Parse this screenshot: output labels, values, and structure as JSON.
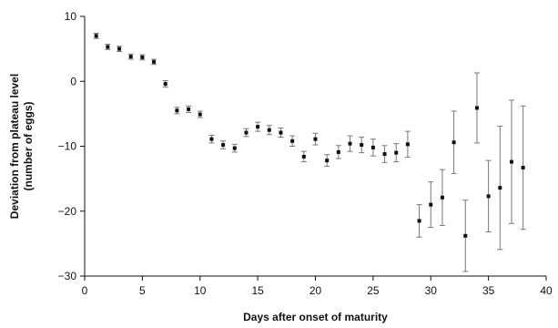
{
  "chart_data": {
    "type": "scatter",
    "title": "",
    "xlabel": "Days after onset of maturity",
    "ylabel_line1": "Deviation from plateau level",
    "ylabel_line2": "(number of eggs)",
    "xlim": [
      0,
      40
    ],
    "ylim": [
      -30,
      10
    ],
    "x_ticks": [
      0,
      5,
      10,
      15,
      20,
      25,
      30,
      35,
      40
    ],
    "y_ticks": [
      10,
      0,
      -10,
      -20,
      -30
    ],
    "x_tick_labels": [
      "0",
      "5",
      "10",
      "15",
      "20",
      "25",
      "30",
      "35",
      "40"
    ],
    "y_tick_labels": [
      "10",
      "0",
      "−10",
      "−20",
      "−30"
    ],
    "grid": false,
    "legend": "none",
    "marker_color": "#111111",
    "errorbar_color": "#777777",
    "points": [
      {
        "x": 1,
        "y": 7.0,
        "err": 0.4
      },
      {
        "x": 2,
        "y": 5.3,
        "err": 0.4
      },
      {
        "x": 3,
        "y": 5.0,
        "err": 0.4
      },
      {
        "x": 4,
        "y": 3.8,
        "err": 0.4
      },
      {
        "x": 5,
        "y": 3.7,
        "err": 0.4
      },
      {
        "x": 6,
        "y": 3.0,
        "err": 0.4
      },
      {
        "x": 7,
        "y": -0.4,
        "err": 0.5
      },
      {
        "x": 8,
        "y": -4.5,
        "err": 0.5
      },
      {
        "x": 9,
        "y": -4.3,
        "err": 0.5
      },
      {
        "x": 10,
        "y": -5.1,
        "err": 0.5
      },
      {
        "x": 11,
        "y": -8.9,
        "err": 0.6
      },
      {
        "x": 12,
        "y": -9.8,
        "err": 0.6
      },
      {
        "x": 13,
        "y": -10.3,
        "err": 0.6
      },
      {
        "x": 14,
        "y": -7.9,
        "err": 0.6
      },
      {
        "x": 15,
        "y": -7.0,
        "err": 0.7
      },
      {
        "x": 16,
        "y": -7.5,
        "err": 0.7
      },
      {
        "x": 17,
        "y": -7.9,
        "err": 0.7
      },
      {
        "x": 18,
        "y": -9.2,
        "err": 0.8
      },
      {
        "x": 19,
        "y": -11.6,
        "err": 0.8
      },
      {
        "x": 20,
        "y": -8.9,
        "err": 0.9
      },
      {
        "x": 21,
        "y": -12.2,
        "err": 0.9
      },
      {
        "x": 22,
        "y": -10.9,
        "err": 1.0
      },
      {
        "x": 23,
        "y": -9.6,
        "err": 1.2
      },
      {
        "x": 24,
        "y": -9.8,
        "err": 1.2
      },
      {
        "x": 25,
        "y": -10.2,
        "err": 1.3
      },
      {
        "x": 26,
        "y": -11.2,
        "err": 1.3
      },
      {
        "x": 27,
        "y": -11.0,
        "err": 1.4
      },
      {
        "x": 28,
        "y": -9.7,
        "err": 2.0
      },
      {
        "x": 29,
        "y": -21.5,
        "err": 2.5
      },
      {
        "x": 30,
        "y": -19.0,
        "err": 3.5
      },
      {
        "x": 31,
        "y": -17.9,
        "err": 4.3
      },
      {
        "x": 32,
        "y": -9.4,
        "err": 4.8
      },
      {
        "x": 33,
        "y": -23.8,
        "err": 5.5
      },
      {
        "x": 34,
        "y": -4.1,
        "err": 5.4
      },
      {
        "x": 35,
        "y": -17.7,
        "err": 5.5
      },
      {
        "x": 36,
        "y": -16.4,
        "err": 9.5
      },
      {
        "x": 37,
        "y": -12.4,
        "err": 9.5
      },
      {
        "x": 38,
        "y": -13.3,
        "err": 9.5
      }
    ]
  }
}
